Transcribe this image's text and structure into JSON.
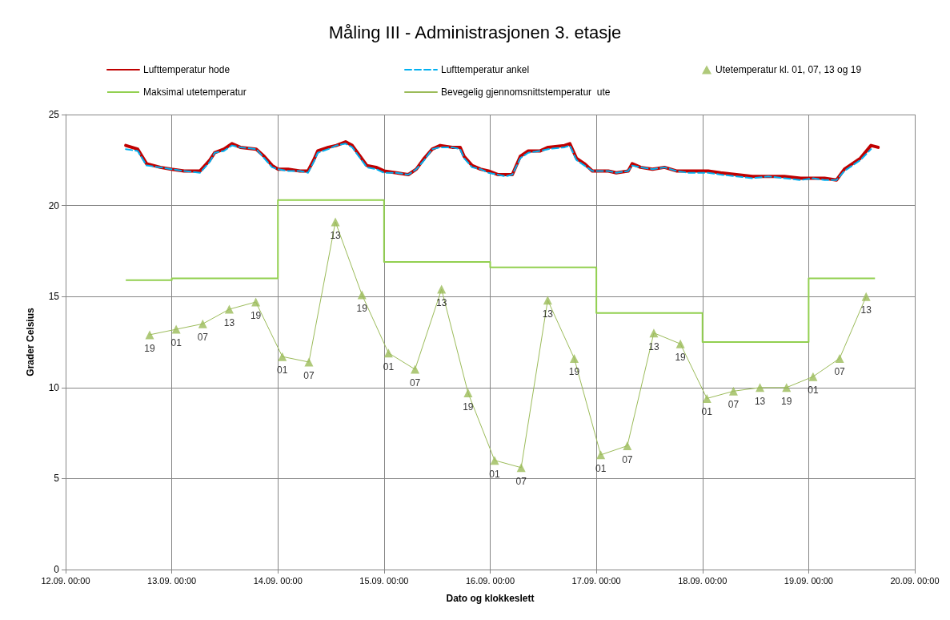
{
  "chart_data": {
    "type": "line",
    "title": "Måling III - Administrasjonen 3. etasje",
    "xlabel": "Dato og klokkeslett",
    "ylabel": "Grader Celsius",
    "xlim": [
      "--09-12T00:00",
      "--09-20T00:00"
    ],
    "xticks": [
      {
        "value": "--09-12T00:00",
        "label": "12.09. 00:00"
      },
      {
        "value": "--09-13T00:00",
        "label": "13.09. 00:00"
      },
      {
        "value": "--09-14T00:00",
        "label": "14.09. 00:00"
      },
      {
        "value": "--09-15T00:00",
        "label": "15.09. 00:00"
      },
      {
        "value": "--09-16T00:00",
        "label": "16.09. 00:00"
      },
      {
        "value": "--09-17T00:00",
        "label": "17.09. 00:00"
      },
      {
        "value": "--09-18T00:00",
        "label": "18.09. 00:00"
      },
      {
        "value": "--09-19T00:00",
        "label": "19.09. 00:00"
      },
      {
        "value": "--09-20T00:00",
        "label": "20.09. 00:00"
      }
    ],
    "ylim": [
      0,
      25
    ],
    "yticks": [
      0,
      5,
      10,
      15,
      20,
      25
    ],
    "grid": true,
    "legend": "top",
    "series": [
      {
        "name": "Lufttemperatur hode",
        "color": "#c00000",
        "line_style": "solid",
        "x": [
          "--09-12T13:36",
          "--09-12T16:18",
          "--09-12T18:18",
          "--09-12T21:24",
          "--09-12T23:54",
          "--09-13T02:48",
          "--09-13T06:24",
          "--09-13T08:36",
          "--09-13T09:42",
          "--09-13T11:48",
          "--09-13T13:36",
          "--09-13T15:30",
          "--09-13T19:06",
          "--09-13T20:54",
          "--09-13T22:42",
          "--09-14T00:00",
          "--09-14T02:18",
          "--09-14T05:00",
          "--09-14T06:48",
          "--09-14T08:06",
          "--09-14T09:00",
          "--09-14T11:24",
          "--09-14T13:12",
          "--09-14T15:18",
          "--09-14T16:48",
          "--09-14T18:36",
          "--09-14T20:06",
          "--09-14T22:12",
          "--09-15T00:00",
          "--09-15T02:48",
          "--09-15T05:30",
          "--09-15T07:18",
          "--09-15T09:06",
          "--09-15T10:54",
          "--09-15T12:42",
          "--09-15T15:24",
          "--09-15T17:12",
          "--09-15T18:06",
          "--09-15T19:54",
          "--09-15T21:48",
          "--09-15T23:36",
          "--09-16T01:42",
          "--09-16T03:30",
          "--09-16T05:00",
          "--09-16T06:48",
          "--09-16T08:36",
          "--09-16T11:18",
          "--09-16T13:06",
          "--09-16T16:48",
          "--09-16T18:00",
          "--09-16T19:30",
          "--09-16T21:18",
          "--09-16T23:06",
          "--09-17T02:42",
          "--09-17T04:30",
          "--09-17T07:12",
          "--09-17T08:06",
          "--09-17T10:00",
          "--09-17T12:42",
          "--09-17T15:24",
          "--09-17T18:06",
          "--09-17T20:48",
          "--09-17T23:30",
          "--09-18T01:18",
          "--09-18T04:06",
          "--09-18T07:42",
          "--09-18T11:18",
          "--09-18T14:54",
          "--09-18T18:30",
          "--09-18T22:12",
          "--09-19T01:00",
          "--09-19T03:36",
          "--09-19T06:18",
          "--09-19T08:06",
          "--09-19T09:54",
          "--09-19T11:42",
          "--09-19T14:06",
          "--09-19T15:42"
        ],
        "values": [
          23.3,
          23.1,
          22.3,
          22.1,
          22.0,
          21.9,
          21.9,
          22.5,
          22.9,
          23.1,
          23.4,
          23.2,
          23.1,
          22.7,
          22.2,
          22.0,
          22.0,
          21.9,
          21.9,
          22.5,
          23.0,
          23.2,
          23.3,
          23.5,
          23.3,
          22.7,
          22.2,
          22.1,
          21.9,
          21.8,
          21.7,
          22.0,
          22.6,
          23.1,
          23.3,
          23.2,
          23.2,
          22.7,
          22.2,
          22.0,
          21.9,
          21.7,
          21.7,
          21.7,
          22.7,
          23.0,
          23.0,
          23.2,
          23.3,
          23.4,
          22.6,
          22.3,
          21.9,
          21.9,
          21.8,
          21.9,
          22.3,
          22.1,
          22.0,
          22.1,
          21.9,
          21.9,
          21.9,
          21.9,
          21.8,
          21.7,
          21.6,
          21.6,
          21.6,
          21.5,
          21.5,
          21.5,
          21.4,
          22.0,
          22.3,
          22.6,
          23.3,
          23.2
        ]
      },
      {
        "name": "Lufttemperatur ankel",
        "color": "#00b0f0",
        "line_style": "dashed",
        "x": [
          "--09-12T13:36",
          "--09-12T16:18",
          "--09-12T18:18",
          "--09-12T21:24",
          "--09-12T23:54",
          "--09-13T02:48",
          "--09-13T06:24",
          "--09-13T08:36",
          "--09-13T09:42",
          "--09-13T11:48",
          "--09-13T13:36",
          "--09-13T15:30",
          "--09-13T19:06",
          "--09-13T20:54",
          "--09-13T22:42",
          "--09-14T00:00",
          "--09-14T02:18",
          "--09-14T05:00",
          "--09-14T06:48",
          "--09-14T08:06",
          "--09-14T09:00",
          "--09-14T11:24",
          "--09-14T13:12",
          "--09-14T15:18",
          "--09-14T16:48",
          "--09-14T18:36",
          "--09-14T20:06",
          "--09-14T22:12",
          "--09-15T00:00",
          "--09-15T02:48",
          "--09-15T05:30",
          "--09-15T07:18",
          "--09-15T09:06",
          "--09-15T10:54",
          "--09-15T12:42",
          "--09-15T15:24",
          "--09-15T17:12",
          "--09-15T18:06",
          "--09-15T19:54",
          "--09-15T21:48",
          "--09-15T23:36",
          "--09-16T01:42",
          "--09-16T03:30",
          "--09-16T05:00",
          "--09-16T06:48",
          "--09-16T08:36",
          "--09-16T11:18",
          "--09-16T13:06",
          "--09-16T16:48",
          "--09-16T18:00",
          "--09-16T19:30",
          "--09-16T21:18",
          "--09-16T23:06",
          "--09-17T02:42",
          "--09-17T04:30",
          "--09-17T07:12",
          "--09-17T08:06",
          "--09-17T10:00",
          "--09-17T12:42",
          "--09-17T15:24",
          "--09-17T18:06",
          "--09-17T20:48",
          "--09-17T23:30",
          "--09-18T01:18",
          "--09-18T04:06",
          "--09-18T07:42",
          "--09-18T11:18",
          "--09-18T14:54",
          "--09-18T18:30",
          "--09-18T22:12",
          "--09-19T01:00",
          "--09-19T03:36",
          "--09-19T06:18",
          "--09-19T08:06",
          "--09-19T09:54",
          "--09-19T11:42",
          "--09-19T14:06"
        ],
        "values": [
          23.1,
          23.0,
          22.2,
          22.1,
          22.0,
          21.9,
          21.8,
          22.4,
          22.9,
          23.0,
          23.3,
          23.2,
          23.1,
          22.6,
          22.1,
          22.0,
          21.9,
          21.9,
          21.8,
          22.4,
          22.9,
          23.1,
          23.3,
          23.4,
          23.2,
          22.6,
          22.1,
          22.0,
          21.8,
          21.8,
          21.7,
          22.0,
          22.5,
          23.1,
          23.2,
          23.2,
          23.1,
          22.6,
          22.1,
          22.0,
          21.8,
          21.7,
          21.6,
          21.7,
          22.6,
          22.9,
          23.0,
          23.1,
          23.2,
          23.3,
          22.5,
          22.2,
          21.9,
          21.9,
          21.8,
          21.9,
          22.2,
          22.1,
          22.0,
          22.1,
          21.9,
          21.8,
          21.8,
          21.8,
          21.7,
          21.6,
          21.5,
          21.6,
          21.5,
          21.4,
          21.5,
          21.4,
          21.4,
          21.9,
          22.2,
          22.5,
          23.1
        ]
      },
      {
        "name": "Utetemperatur kl. 01, 07, 13 og 19",
        "type": "scatter",
        "color": "#9bbb59",
        "marker": "triangle",
        "x": [
          "--09-12T19:00",
          "--09-13T01:00",
          "--09-13T07:00",
          "--09-13T13:00",
          "--09-13T19:00",
          "--09-14T01:00",
          "--09-14T07:00",
          "--09-14T13:00",
          "--09-14T19:00",
          "--09-15T01:00",
          "--09-15T07:00",
          "--09-15T13:00",
          "--09-15T19:00",
          "--09-16T01:00",
          "--09-16T07:00",
          "--09-16T13:00",
          "--09-16T19:00",
          "--09-17T01:00",
          "--09-17T07:00",
          "--09-17T13:00",
          "--09-17T19:00",
          "--09-18T01:00",
          "--09-18T07:00",
          "--09-18T13:00",
          "--09-18T19:00",
          "--09-19T01:00",
          "--09-19T07:00",
          "--09-19T13:00"
        ],
        "values": [
          12.9,
          13.2,
          13.5,
          14.3,
          14.7,
          11.7,
          11.4,
          19.1,
          15.1,
          11.9,
          11.0,
          15.4,
          9.7,
          6.0,
          5.6,
          14.8,
          11.6,
          6.3,
          6.8,
          13.0,
          12.4,
          9.4,
          9.8,
          10.0,
          10.0,
          10.6,
          11.6,
          15.0
        ]
      },
      {
        "name": "Maksimal utetemperatur",
        "type": "step",
        "color": "#92d050",
        "x": [
          "--09-12T13:36",
          "--09-13T00:00",
          "--09-14T00:00",
          "--09-15T00:00",
          "--09-16T00:00",
          "--09-17T00:00",
          "--09-18T00:00",
          "--09-19T00:00",
          "--09-19T15:00"
        ],
        "values": [
          15.9,
          16.0,
          20.3,
          16.9,
          16.6,
          14.1,
          12.5,
          16.0,
          16.0
        ]
      },
      {
        "name": "Bevegelig gjennomsnittstemperatur  ute",
        "color": "#9bbb59",
        "marker": "none",
        "x": [
          "--09-12T19:00",
          "--09-13T01:00",
          "--09-13T07:00",
          "--09-13T13:00",
          "--09-13T19:00",
          "--09-14T01:00",
          "--09-14T07:00",
          "--09-14T13:00",
          "--09-14T19:00",
          "--09-15T01:00",
          "--09-15T07:00",
          "--09-15T13:00",
          "--09-15T19:00",
          "--09-16T01:00",
          "--09-16T07:00",
          "--09-16T13:00",
          "--09-16T19:00",
          "--09-17T01:00",
          "--09-17T07:00",
          "--09-17T13:00",
          "--09-17T19:00",
          "--09-18T01:00",
          "--09-18T07:00",
          "--09-18T13:00",
          "--09-18T19:00",
          "--09-19T01:00",
          "--09-19T07:00",
          "--09-19T13:00"
        ],
        "values": [
          12.9,
          13.2,
          13.5,
          14.3,
          14.7,
          11.7,
          11.4,
          19.1,
          15.1,
          11.9,
          11.0,
          15.4,
          9.7,
          6.0,
          5.6,
          14.8,
          11.6,
          6.3,
          6.8,
          13.0,
          12.4,
          9.4,
          9.8,
          10.0,
          10.0,
          10.6,
          11.6,
          15.0
        ]
      }
    ],
    "annotations": [
      {
        "text": "19",
        "x": "--09-12T19:00",
        "y": 12.9
      },
      {
        "text": "01",
        "x": "--09-13T01:00",
        "y": 13.2
      },
      {
        "text": "07",
        "x": "--09-13T07:00",
        "y": 13.5
      },
      {
        "text": "13",
        "x": "--09-13T13:00",
        "y": 14.3
      },
      {
        "text": "19",
        "x": "--09-13T19:00",
        "y": 14.7
      },
      {
        "text": "01",
        "x": "--09-14T01:00",
        "y": 11.7
      },
      {
        "text": "07",
        "x": "--09-14T07:00",
        "y": 11.4
      },
      {
        "text": "13",
        "x": "--09-14T13:00",
        "y": 19.1
      },
      {
        "text": "19",
        "x": "--09-14T19:00",
        "y": 15.1
      },
      {
        "text": "01",
        "x": "--09-15T01:00",
        "y": 11.9
      },
      {
        "text": "07",
        "x": "--09-15T07:00",
        "y": 11.0
      },
      {
        "text": "13",
        "x": "--09-15T13:00",
        "y": 15.4
      },
      {
        "text": "19",
        "x": "--09-15T19:00",
        "y": 9.7
      },
      {
        "text": "01",
        "x": "--09-16T01:00",
        "y": 6.0
      },
      {
        "text": "07",
        "x": "--09-16T07:00",
        "y": 5.6
      },
      {
        "text": "13",
        "x": "--09-16T13:00",
        "y": 14.8
      },
      {
        "text": "19",
        "x": "--09-16T19:00",
        "y": 11.6
      },
      {
        "text": "01",
        "x": "--09-17T01:00",
        "y": 6.3
      },
      {
        "text": "07",
        "x": "--09-17T07:00",
        "y": 6.8
      },
      {
        "text": "13",
        "x": "--09-17T13:00",
        "y": 13.0
      },
      {
        "text": "19",
        "x": "--09-17T19:00",
        "y": 12.4
      },
      {
        "text": "01",
        "x": "--09-18T01:00",
        "y": 9.4
      },
      {
        "text": "07",
        "x": "--09-18T07:00",
        "y": 9.8
      },
      {
        "text": "13",
        "x": "--09-18T13:00",
        "y": 10.0
      },
      {
        "text": "19",
        "x": "--09-18T19:00",
        "y": 10.0
      },
      {
        "text": "01",
        "x": "--09-19T01:00",
        "y": 10.6
      },
      {
        "text": "07",
        "x": "--09-19T07:00",
        "y": 11.6
      },
      {
        "text": "13",
        "x": "--09-19T13:00",
        "y": 15.0
      }
    ]
  }
}
